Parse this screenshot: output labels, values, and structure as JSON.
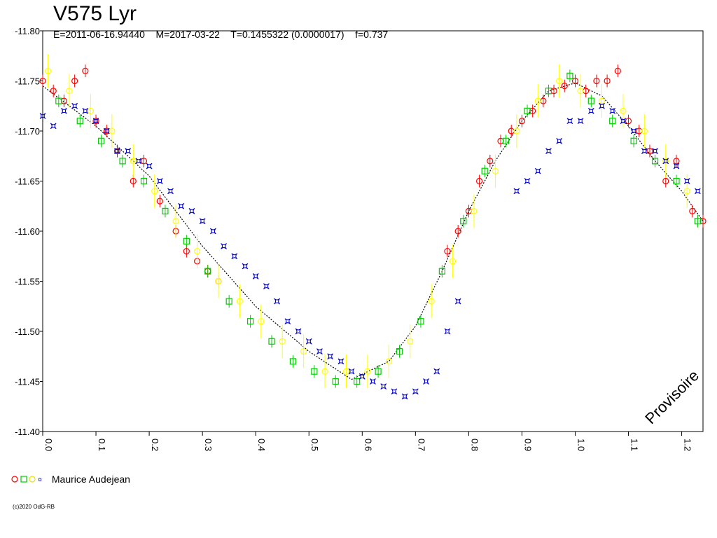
{
  "header": {
    "title": "V575 Lyr",
    "subtitle": "E=2011-06-16.94440    M=2017-03-22    T=0.1455322 (0.0000017)    f=0.737"
  },
  "legend": {
    "observer": "Maurice Audejean",
    "colors": [
      "#ff0000",
      "#00cc00",
      "#ffff00",
      "#0000cc"
    ]
  },
  "copyright": "(c)2020 OdG-RB",
  "watermark": "Provisoire",
  "chart_data": {
    "type": "scatter",
    "title": "V575 Lyr",
    "xlabel": "",
    "ylabel": "",
    "xlim": [
      0.0,
      1.24
    ],
    "ylim": [
      -11.8,
      -11.4
    ],
    "x_ticks": [
      "0.0",
      "0.1",
      "0.2",
      "0.3",
      "0.4",
      "0.5",
      "0.6",
      "0.7",
      "0.8",
      "0.9",
      "1.0",
      "1.1",
      "1.2"
    ],
    "y_ticks": [
      "-11.80",
      "-11.75",
      "-11.70",
      "-11.65",
      "-11.60",
      "-11.55",
      "-11.50",
      "-11.45",
      "-11.40"
    ],
    "series": [
      {
        "color": "#ff0000",
        "marker": "circle",
        "points": [
          [
            0.0,
            -11.75
          ],
          [
            0.02,
            -11.74
          ],
          [
            0.04,
            -11.73
          ],
          [
            0.06,
            -11.75
          ],
          [
            0.08,
            -11.76
          ],
          [
            0.1,
            -11.71
          ],
          [
            0.12,
            -11.7
          ],
          [
            0.14,
            -11.68
          ],
          [
            0.17,
            -11.65
          ],
          [
            0.19,
            -11.67
          ],
          [
            0.22,
            -11.63
          ],
          [
            0.25,
            -11.6
          ],
          [
            0.27,
            -11.58
          ],
          [
            0.29,
            -11.57
          ],
          [
            0.31,
            -11.56
          ],
          [
            0.33,
            -11.55
          ],
          [
            0.76,
            -11.58
          ],
          [
            0.78,
            -11.6
          ],
          [
            0.8,
            -11.62
          ],
          [
            0.82,
            -11.65
          ],
          [
            0.84,
            -11.67
          ],
          [
            0.86,
            -11.69
          ],
          [
            0.88,
            -11.7
          ],
          [
            0.9,
            -11.71
          ],
          [
            0.92,
            -11.72
          ],
          [
            0.94,
            -11.73
          ],
          [
            0.96,
            -11.74
          ],
          [
            0.98,
            -11.745
          ],
          [
            1.0,
            -11.75
          ],
          [
            1.02,
            -11.74
          ],
          [
            1.04,
            -11.75
          ],
          [
            1.06,
            -11.75
          ],
          [
            1.08,
            -11.76
          ],
          [
            1.1,
            -11.71
          ],
          [
            1.12,
            -11.7
          ],
          [
            1.14,
            -11.68
          ],
          [
            1.17,
            -11.65
          ],
          [
            1.19,
            -11.67
          ],
          [
            1.22,
            -11.62
          ],
          [
            1.24,
            -11.61
          ]
        ]
      },
      {
        "color": "#00cc00",
        "marker": "square",
        "points": [
          [
            0.03,
            -11.73
          ],
          [
            0.07,
            -11.71
          ],
          [
            0.11,
            -11.69
          ],
          [
            0.15,
            -11.67
          ],
          [
            0.19,
            -11.65
          ],
          [
            0.23,
            -11.62
          ],
          [
            0.27,
            -11.59
          ],
          [
            0.31,
            -11.56
          ],
          [
            0.35,
            -11.53
          ],
          [
            0.39,
            -11.51
          ],
          [
            0.43,
            -11.49
          ],
          [
            0.47,
            -11.47
          ],
          [
            0.51,
            -11.46
          ],
          [
            0.55,
            -11.45
          ],
          [
            0.59,
            -11.45
          ],
          [
            0.63,
            -11.46
          ],
          [
            0.67,
            -11.48
          ],
          [
            0.71,
            -11.51
          ],
          [
            0.75,
            -11.56
          ],
          [
            0.79,
            -11.61
          ],
          [
            0.83,
            -11.66
          ],
          [
            0.87,
            -11.69
          ],
          [
            0.91,
            -11.72
          ],
          [
            0.95,
            -11.74
          ],
          [
            0.99,
            -11.755
          ],
          [
            1.03,
            -11.73
          ],
          [
            1.07,
            -11.71
          ],
          [
            1.11,
            -11.69
          ],
          [
            1.15,
            -11.67
          ],
          [
            1.19,
            -11.65
          ],
          [
            1.23,
            -11.61
          ]
        ]
      },
      {
        "color": "#ffff00",
        "marker": "circle",
        "points": [
          [
            0.01,
            -11.76
          ],
          [
            0.05,
            -11.74
          ],
          [
            0.09,
            -11.72
          ],
          [
            0.13,
            -11.7
          ],
          [
            0.17,
            -11.67
          ],
          [
            0.21,
            -11.64
          ],
          [
            0.25,
            -11.61
          ],
          [
            0.29,
            -11.58
          ],
          [
            0.33,
            -11.55
          ],
          [
            0.37,
            -11.53
          ],
          [
            0.41,
            -11.51
          ],
          [
            0.45,
            -11.49
          ],
          [
            0.49,
            -11.48
          ],
          [
            0.53,
            -11.46
          ],
          [
            0.57,
            -11.46
          ],
          [
            0.61,
            -11.46
          ],
          [
            0.65,
            -11.47
          ],
          [
            0.69,
            -11.49
          ],
          [
            0.73,
            -11.53
          ],
          [
            0.77,
            -11.57
          ],
          [
            0.81,
            -11.62
          ],
          [
            0.85,
            -11.66
          ],
          [
            0.89,
            -11.7
          ],
          [
            0.93,
            -11.73
          ],
          [
            0.97,
            -11.75
          ],
          [
            1.01,
            -11.74
          ],
          [
            1.05,
            -11.73
          ],
          [
            1.09,
            -11.72
          ],
          [
            1.13,
            -11.7
          ],
          [
            1.17,
            -11.67
          ],
          [
            1.21,
            -11.64
          ]
        ]
      },
      {
        "color": "#0000cc",
        "marker": "star",
        "points": [
          [
            0.0,
            -11.715
          ],
          [
            0.02,
            -11.705
          ],
          [
            0.04,
            -11.72
          ],
          [
            0.06,
            -11.725
          ],
          [
            0.08,
            -11.72
          ],
          [
            0.1,
            -11.71
          ],
          [
            0.12,
            -11.7
          ],
          [
            0.14,
            -11.68
          ],
          [
            0.16,
            -11.68
          ],
          [
            0.18,
            -11.67
          ],
          [
            0.2,
            -11.665
          ],
          [
            0.22,
            -11.65
          ],
          [
            0.24,
            -11.64
          ],
          [
            0.26,
            -11.625
          ],
          [
            0.28,
            -11.62
          ],
          [
            0.3,
            -11.61
          ],
          [
            0.32,
            -11.6
          ],
          [
            0.34,
            -11.585
          ],
          [
            0.36,
            -11.575
          ],
          [
            0.38,
            -11.565
          ],
          [
            0.4,
            -11.555
          ],
          [
            0.42,
            -11.545
          ],
          [
            0.44,
            -11.53
          ],
          [
            0.46,
            -11.51
          ],
          [
            0.48,
            -11.5
          ],
          [
            0.5,
            -11.49
          ],
          [
            0.52,
            -11.48
          ],
          [
            0.54,
            -11.475
          ],
          [
            0.56,
            -11.47
          ],
          [
            0.58,
            -11.46
          ],
          [
            0.6,
            -11.455
          ],
          [
            0.62,
            -11.45
          ],
          [
            0.64,
            -11.445
          ],
          [
            0.66,
            -11.44
          ],
          [
            0.68,
            -11.435
          ],
          [
            0.7,
            -11.44
          ],
          [
            0.72,
            -11.45
          ],
          [
            0.74,
            -11.46
          ],
          [
            0.76,
            -11.5
          ],
          [
            0.78,
            -11.53
          ],
          [
            0.89,
            -11.64
          ],
          [
            0.91,
            -11.65
          ],
          [
            0.93,
            -11.66
          ],
          [
            0.95,
            -11.68
          ],
          [
            0.97,
            -11.69
          ],
          [
            0.99,
            -11.71
          ],
          [
            1.01,
            -11.71
          ],
          [
            1.03,
            -11.72
          ],
          [
            1.05,
            -11.725
          ],
          [
            1.07,
            -11.72
          ],
          [
            1.09,
            -11.71
          ],
          [
            1.11,
            -11.7
          ],
          [
            1.13,
            -11.68
          ],
          [
            1.15,
            -11.68
          ],
          [
            1.17,
            -11.67
          ],
          [
            1.19,
            -11.665
          ],
          [
            1.21,
            -11.65
          ],
          [
            1.23,
            -11.64
          ]
        ]
      }
    ],
    "fit_curve": {
      "color": "#000000",
      "points": [
        [
          0.0,
          -11.745
        ],
        [
          0.1,
          -11.705
        ],
        [
          0.2,
          -11.655
        ],
        [
          0.3,
          -11.585
        ],
        [
          0.4,
          -11.525
        ],
        [
          0.5,
          -11.48
        ],
        [
          0.58,
          -11.452
        ],
        [
          0.65,
          -11.47
        ],
        [
          0.7,
          -11.505
        ],
        [
          0.75,
          -11.56
        ],
        [
          0.8,
          -11.62
        ],
        [
          0.85,
          -11.67
        ],
        [
          0.9,
          -11.71
        ],
        [
          0.95,
          -11.74
        ],
        [
          1.0,
          -11.748
        ],
        [
          1.05,
          -11.735
        ],
        [
          1.1,
          -11.705
        ],
        [
          1.15,
          -11.67
        ],
        [
          1.2,
          -11.64
        ],
        [
          1.24,
          -11.61
        ]
      ]
    }
  }
}
